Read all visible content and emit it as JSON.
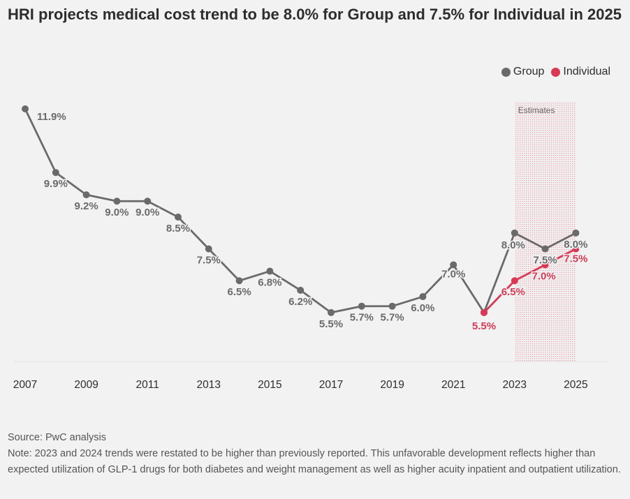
{
  "title": "HRI projects medical cost trend to be 8.0% for Group and 7.5% for Individual in 2025",
  "legend": [
    {
      "name": "Group",
      "color": "#6b6a6a"
    },
    {
      "name": "Individual",
      "color": "#d93954"
    }
  ],
  "estimates_label": "Estimates",
  "source": "Source: PwC analysis",
  "note": "Note: 2023 and 2024 trends were restated to be higher than previously reported. This unfavorable development reflects higher than expected utilization of GLP-1 drugs for both diabetes and weight management as well as higher acuity inpatient and outpatient utilization.",
  "chart_data": {
    "type": "line",
    "x_ticks": [
      "2007",
      "2009",
      "2011",
      "2013",
      "2015",
      "2017",
      "2019",
      "2021",
      "2023",
      "2025"
    ],
    "estimates_range": [
      2023,
      2025
    ],
    "grid": false,
    "legend_position": "top-right",
    "series": [
      {
        "name": "Group",
        "color": "#6b6a6a",
        "x": [
          2007,
          2008,
          2009,
          2010,
          2011,
          2012,
          2013,
          2014,
          2015,
          2016,
          2017,
          2018,
          2019,
          2020,
          2021,
          2022,
          2023,
          2024,
          2025
        ],
        "values": [
          11.9,
          9.9,
          9.2,
          9.0,
          9.0,
          8.5,
          7.5,
          6.5,
          6.8,
          6.2,
          5.5,
          5.7,
          5.7,
          6.0,
          7.0,
          5.5,
          8.0,
          7.5,
          8.0
        ],
        "labels": [
          "11.9%",
          "9.9%",
          "9.2%",
          "9.0%",
          "9.0%",
          "8.5%",
          "7.5%",
          "6.5%",
          "6.8%",
          "6.2%",
          "5.5%",
          "5.7%",
          "5.7%",
          "6.0%",
          "7.0%",
          null,
          "8.0%",
          "7.5%",
          "8.0%"
        ]
      },
      {
        "name": "Individual",
        "color": "#d93954",
        "x": [
          2022,
          2023,
          2024,
          2025
        ],
        "values": [
          5.5,
          6.5,
          7.0,
          7.5
        ],
        "labels": [
          "5.5%",
          "6.5%",
          "7.0%",
          "7.5%"
        ]
      }
    ]
  }
}
